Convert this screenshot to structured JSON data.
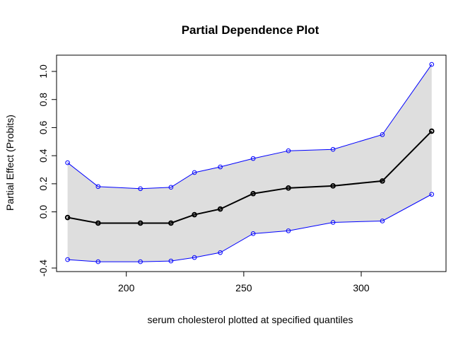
{
  "chart_data": {
    "type": "line",
    "title": "Partial Dependence Plot",
    "xlabel": "serum cholesterol plotted at specified quantiles",
    "ylabel": "Partial Effect (Probits)",
    "xlim": [
      170.3,
      336.1
    ],
    "ylim": [
      -0.4,
      1.05
    ],
    "x_ticks": [
      200,
      250,
      300
    ],
    "x_tick_labels": [
      "200",
      "250",
      "300"
    ],
    "y_ticks": [
      -0.4,
      0.0,
      0.2,
      0.4,
      0.6,
      0.8,
      1.0
    ],
    "y_tick_labels": [
      "-0.4",
      "0.0",
      "0.2",
      "0.4",
      "0.6",
      "0.8",
      "1.0"
    ],
    "x": [
      175,
      188,
      206,
      219,
      229,
      240,
      254,
      269,
      288,
      309,
      330
    ],
    "series": [
      {
        "role": "estimate",
        "values": [
          -0.04,
          -0.08,
          -0.08,
          -0.08,
          -0.02,
          0.02,
          0.13,
          0.17,
          0.185,
          0.22,
          0.575
        ]
      },
      {
        "role": "upper-band",
        "values": [
          0.35,
          0.18,
          0.165,
          0.175,
          0.28,
          0.32,
          0.38,
          0.435,
          0.445,
          0.55,
          1.05
        ]
      },
      {
        "role": "lower-band",
        "values": [
          -0.34,
          -0.355,
          -0.355,
          -0.35,
          -0.325,
          -0.29,
          -0.155,
          -0.135,
          -0.075,
          -0.065,
          0.125
        ]
      }
    ],
    "band_color": "#dedede",
    "estimate_color": "#000000",
    "band_line_color": "#0000ff",
    "grid": false
  }
}
